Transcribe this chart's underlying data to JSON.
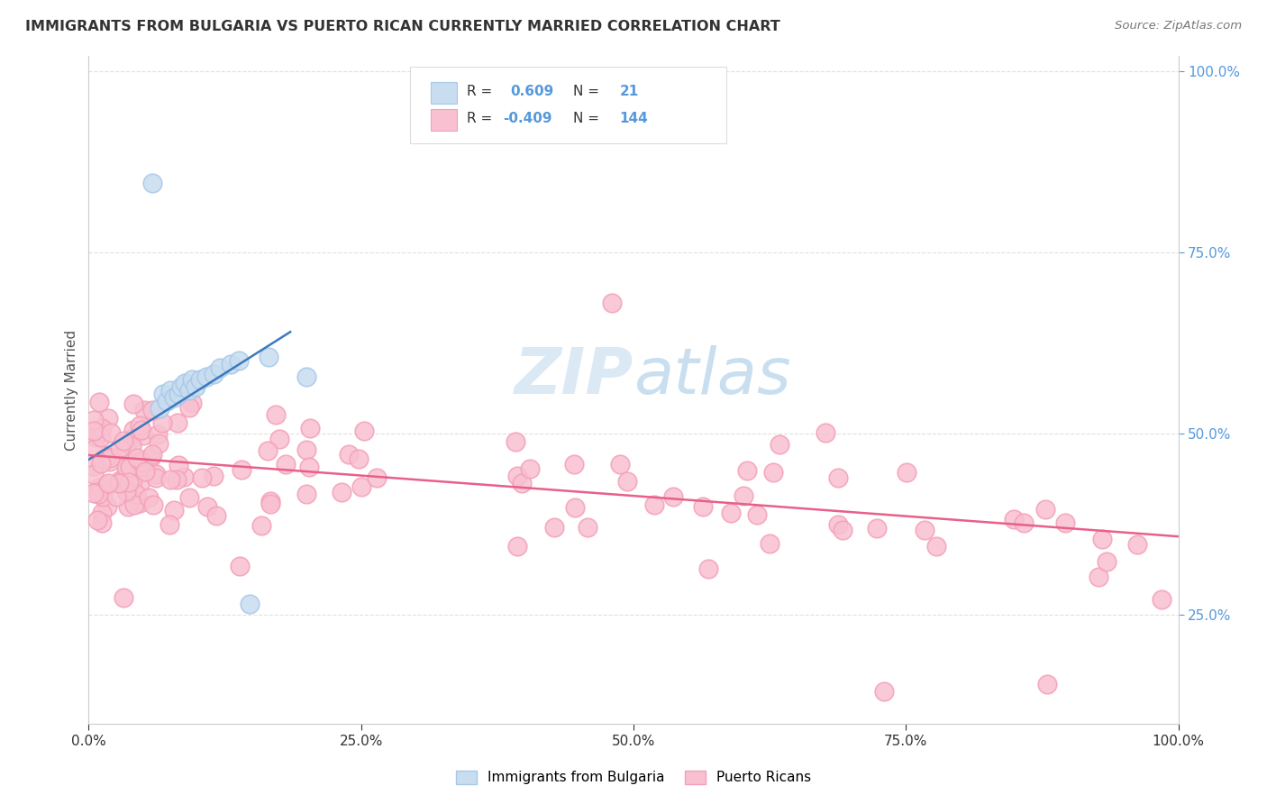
{
  "title": "IMMIGRANTS FROM BULGARIA VS PUERTO RICAN CURRENTLY MARRIED CORRELATION CHART",
  "source": "Source: ZipAtlas.com",
  "ylabel": "Currently Married",
  "blue_color": "#a8c8e8",
  "pink_color": "#f4a0b8",
  "blue_line_color": "#3a7abf",
  "pink_line_color": "#e8608a",
  "blue_fill_color": "#c8ddf0",
  "pink_fill_color": "#f8c0d0",
  "right_tick_color": "#5599dd",
  "watermark_color": "#c8ddf0",
  "grid_color": "#e0e0e0",
  "legend_r1": "R =  0.609",
  "legend_n1": "N =  21",
  "legend_r2": "R = -0.409",
  "legend_n2": "N = 144",
  "blue_scatter_x": [
    0.058,
    0.065,
    0.068,
    0.072,
    0.075,
    0.078,
    0.082,
    0.085,
    0.088,
    0.092,
    0.095,
    0.098,
    0.102,
    0.108,
    0.115,
    0.12,
    0.13,
    0.138,
    0.148,
    0.2,
    0.165
  ],
  "blue_scatter_y": [
    0.845,
    0.535,
    0.555,
    0.545,
    0.56,
    0.55,
    0.555,
    0.565,
    0.57,
    0.56,
    0.575,
    0.565,
    0.575,
    0.578,
    0.582,
    0.59,
    0.595,
    0.6,
    0.265,
    0.578,
    0.605
  ],
  "blue_line_x": [
    -0.02,
    0.185
  ],
  "blue_line_y": [
    0.445,
    0.64
  ],
  "pink_line_x": [
    0.0,
    1.0
  ],
  "pink_line_y": [
    0.47,
    0.358
  ],
  "xlim": [
    0.0,
    1.0
  ],
  "ylim": [
    0.1,
    1.02
  ],
  "x_ticks": [
    0.0,
    0.25,
    0.5,
    0.75,
    1.0
  ],
  "x_tick_labels": [
    "0.0%",
    "25.0%",
    "50.0%",
    "75.0%",
    "100.0%"
  ],
  "y_ticks": [
    0.25,
    0.5,
    0.75,
    1.0
  ],
  "y_tick_labels": [
    "25.0%",
    "50.0%",
    "75.0%",
    "100.0%"
  ]
}
